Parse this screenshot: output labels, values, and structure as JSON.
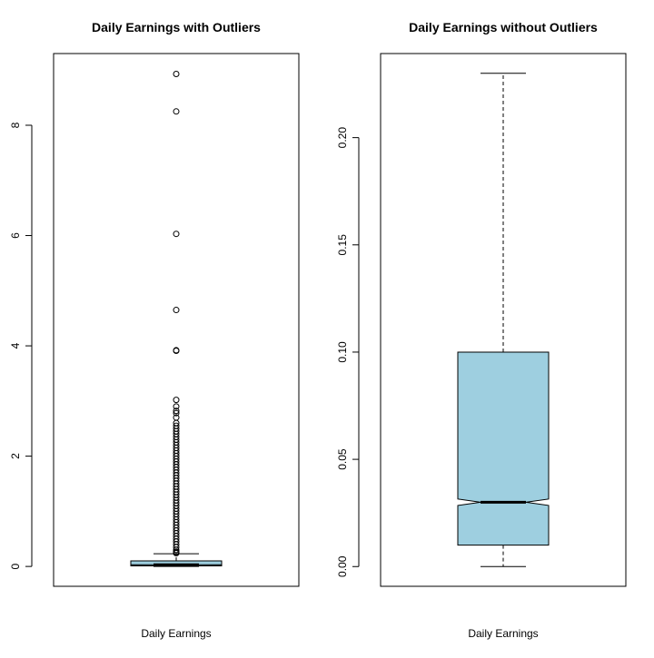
{
  "chart_data": [
    {
      "type": "boxplot",
      "title": "Daily Earnings with Outliers",
      "xlabel": "Daily Earnings",
      "ylabel": "",
      "ylim": [
        -0.36,
        9.3
      ],
      "yticks": [
        0,
        2,
        4,
        6,
        8
      ],
      "notch": true,
      "box_color": "#9ECFE0",
      "stats": {
        "min": 0.0,
        "q1": 0.01,
        "median": 0.03,
        "q3": 0.1,
        "max": 0.23,
        "notch_low": 0.029,
        "notch_high": 0.031
      },
      "outliers": [
        8.93,
        8.25,
        6.03,
        4.65,
        3.92,
        3.91,
        3.02,
        2.9,
        2.82,
        2.78,
        2.7,
        2.6,
        2.55,
        2.5,
        2.45,
        2.4,
        2.35,
        2.3,
        2.25,
        2.2,
        2.15,
        2.1,
        2.05,
        2.0,
        1.95,
        1.9,
        1.85,
        1.8,
        1.75,
        1.7,
        1.65,
        1.6,
        1.55,
        1.5,
        1.45,
        1.4,
        1.35,
        1.3,
        1.25,
        1.2,
        1.15,
        1.1,
        1.05,
        1.0,
        0.95,
        0.9,
        0.85,
        0.8,
        0.75,
        0.7,
        0.65,
        0.6,
        0.55,
        0.5,
        0.45,
        0.4,
        0.35,
        0.3,
        0.27,
        0.25,
        0.24
      ]
    },
    {
      "type": "boxplot",
      "title": "Daily Earnings without Outliers",
      "xlabel": "Daily Earnings",
      "ylabel": "",
      "ylim": [
        -0.0092,
        0.2392
      ],
      "yticks": [
        0.0,
        0.05,
        0.1,
        0.15,
        0.2
      ],
      "ytick_labels": [
        "0.00",
        "0.05",
        "0.10",
        "0.15",
        "0.20"
      ],
      "notch": true,
      "box_color": "#9ECFE0",
      "stats": {
        "min": 0.0,
        "q1": 0.01,
        "median": 0.03,
        "q3": 0.1,
        "max": 0.23,
        "notch_low": 0.0285,
        "notch_high": 0.0315
      },
      "outliers": []
    }
  ]
}
